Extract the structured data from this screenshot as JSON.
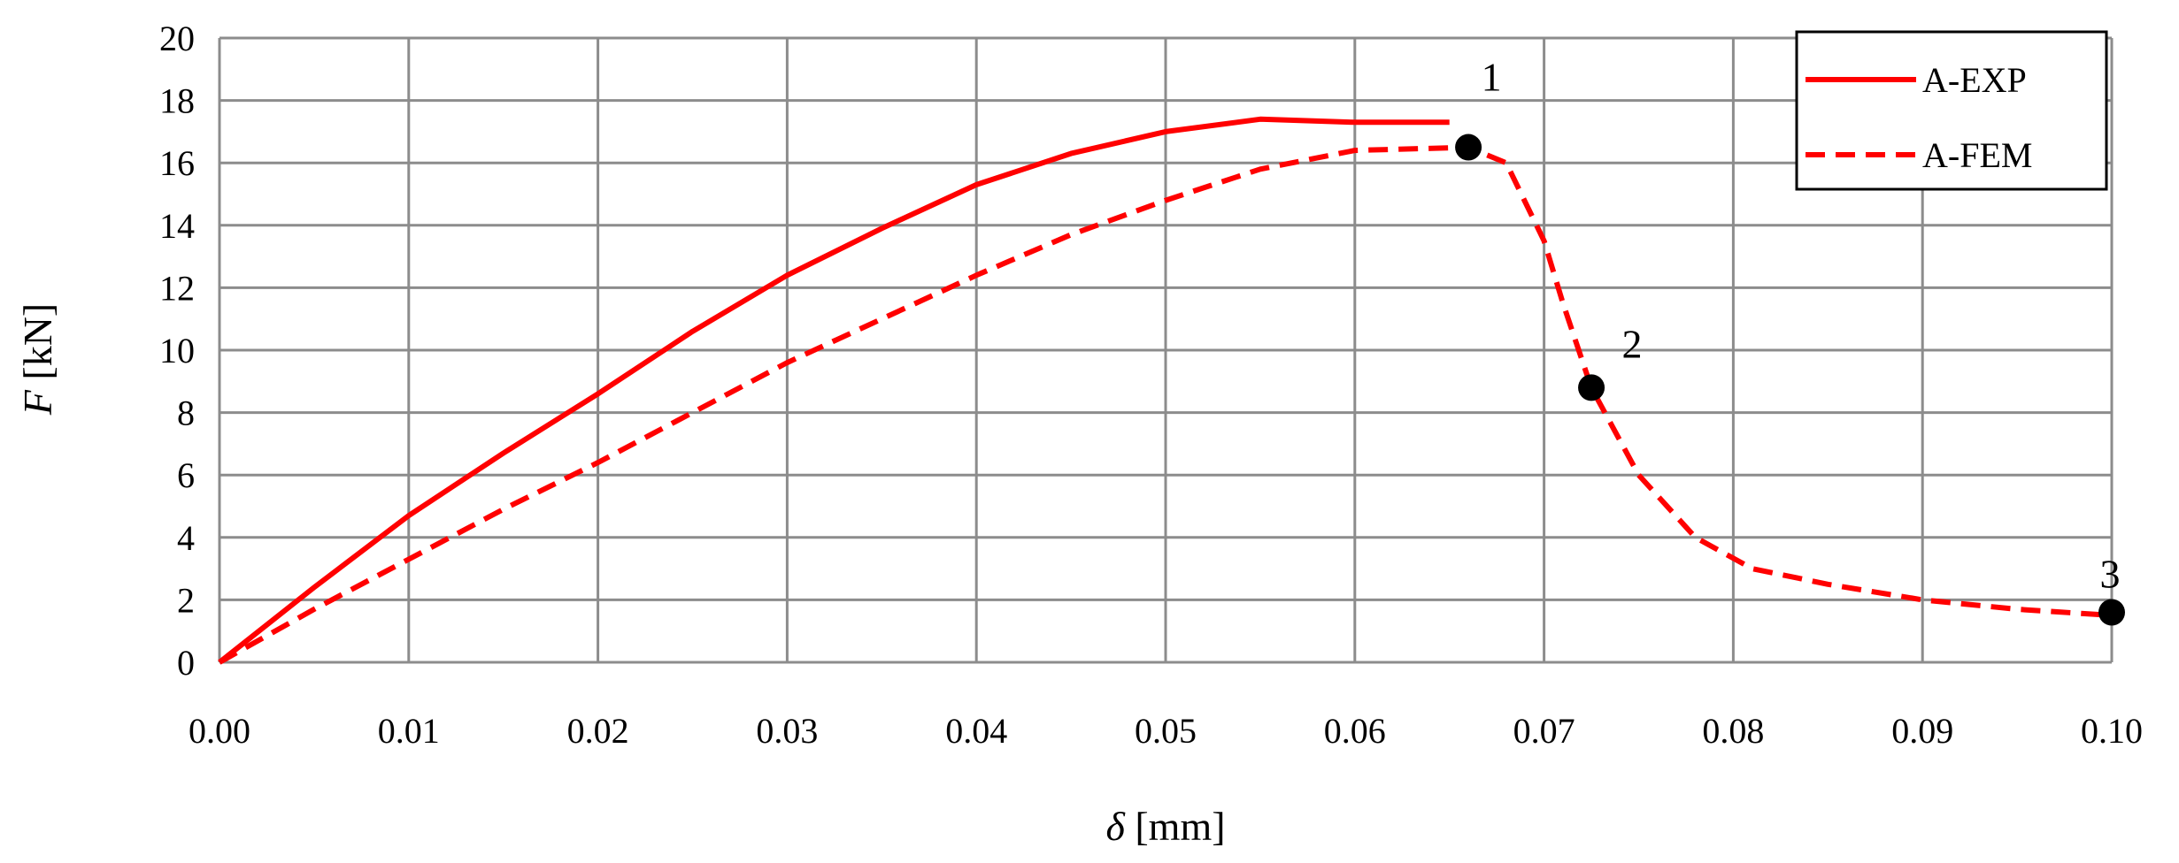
{
  "chart_data": {
    "type": "line",
    "xlabel": {
      "symbol": "δ",
      "unit": " [mm]"
    },
    "ylabel": {
      "symbol": "F",
      "unit": " [kN]"
    },
    "xlim": [
      0,
      0.1
    ],
    "ylim": [
      0,
      20
    ],
    "x_ticks": [
      "0.00",
      "0.01",
      "0.02",
      "0.03",
      "0.04",
      "0.05",
      "0.06",
      "0.07",
      "0.08",
      "0.09",
      "0.10"
    ],
    "y_ticks": [
      "0",
      "2",
      "4",
      "6",
      "8",
      "10",
      "12",
      "14",
      "16",
      "18",
      "20"
    ],
    "grid": true,
    "legend_position": "top-right",
    "series": [
      {
        "name": "A-EXP",
        "style": "solid",
        "color": "#ff0000",
        "points": [
          [
            0,
            0
          ],
          [
            0.005,
            2.4
          ],
          [
            0.01,
            4.7
          ],
          [
            0.015,
            6.7
          ],
          [
            0.02,
            8.6
          ],
          [
            0.025,
            10.6
          ],
          [
            0.03,
            12.4
          ],
          [
            0.035,
            13.9
          ],
          [
            0.04,
            15.3
          ],
          [
            0.045,
            16.3
          ],
          [
            0.05,
            17.0
          ],
          [
            0.055,
            17.4
          ],
          [
            0.06,
            17.3
          ],
          [
            0.065,
            17.3
          ]
        ]
      },
      {
        "name": "A-FEM",
        "style": "dashed",
        "color": "#ff0000",
        "points": [
          [
            0,
            0
          ],
          [
            0.005,
            1.7
          ],
          [
            0.01,
            3.3
          ],
          [
            0.015,
            4.9
          ],
          [
            0.02,
            6.4
          ],
          [
            0.025,
            8.0
          ],
          [
            0.03,
            9.6
          ],
          [
            0.035,
            11.0
          ],
          [
            0.04,
            12.4
          ],
          [
            0.045,
            13.7
          ],
          [
            0.05,
            14.8
          ],
          [
            0.055,
            15.8
          ],
          [
            0.06,
            16.4
          ],
          [
            0.066,
            16.5
          ],
          [
            0.068,
            16.0
          ],
          [
            0.07,
            13.5
          ],
          [
            0.071,
            11.5
          ],
          [
            0.0725,
            8.8
          ],
          [
            0.075,
            6.0
          ],
          [
            0.078,
            4.0
          ],
          [
            0.081,
            3.0
          ],
          [
            0.085,
            2.5
          ],
          [
            0.09,
            2.0
          ],
          [
            0.095,
            1.7
          ],
          [
            0.1,
            1.5
          ]
        ]
      }
    ],
    "annotations": [
      {
        "label": "1",
        "x": 0.066,
        "y": 16.5
      },
      {
        "label": "2",
        "x": 0.0725,
        "y": 8.8
      },
      {
        "label": "3",
        "x": 0.1,
        "y": 1.6
      }
    ]
  }
}
